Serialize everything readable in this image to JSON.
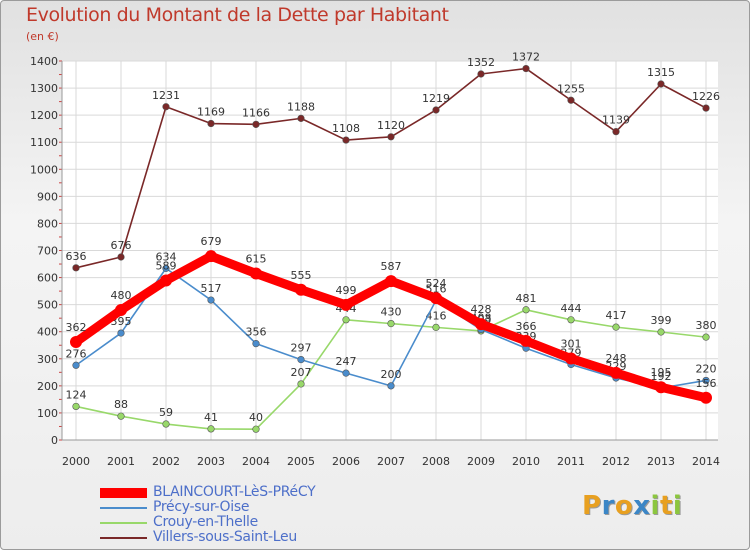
{
  "title": "Evolution du Montant de la Dette par Habitant",
  "subtitle": "(en €)",
  "logo": {
    "letters": [
      "P",
      "r",
      "o",
      "x",
      "i",
      "t",
      "i"
    ],
    "colors": [
      "#e8a020",
      "#3b86c6",
      "#e8a020",
      "#3b86c6",
      "#8cc63f",
      "#e8a020",
      "#8cc63f"
    ]
  },
  "chart_data": {
    "type": "line",
    "x": [
      2000,
      2001,
      2002,
      2003,
      2004,
      2005,
      2006,
      2007,
      2008,
      2009,
      2010,
      2011,
      2012,
      2013,
      2014
    ],
    "ylim": [
      0,
      1400
    ],
    "yticks": [
      0,
      100,
      200,
      300,
      400,
      500,
      600,
      700,
      800,
      900,
      1000,
      1100,
      1200,
      1300,
      1400
    ],
    "grid": true,
    "legend_position": "bottom-left",
    "series": [
      {
        "name": "Villers-sous-Saint-Leu",
        "color": "#7a2828",
        "values": [
          636,
          676,
          1231,
          1169,
          1166,
          1188,
          1108,
          1120,
          1219,
          1352,
          1372,
          1255,
          1139,
          1315,
          1226
        ],
        "labels": [
          "636",
          "676",
          "1231",
          "1169",
          "1166",
          "1188",
          "1108",
          "1120",
          "1219",
          "1352",
          "1372",
          "1255",
          "1139",
          "1315",
          "1226"
        ]
      },
      {
        "name": "Crouy-en-Thelle",
        "color": "#98d86a",
        "values": [
          124,
          88,
          59,
          41,
          40,
          207,
          444,
          430,
          416,
          403,
          481,
          444,
          417,
          399,
          380
        ],
        "labels": [
          "124",
          "88",
          "59",
          "41",
          "40",
          "207",
          "444",
          "430",
          "416",
          "403",
          "481",
          "444",
          "417",
          "399",
          "380"
        ]
      },
      {
        "name": "Précy-sur-Oise",
        "color": "#4a8ccc",
        "values": [
          276,
          395,
          634,
          517,
          356,
          297,
          247,
          200,
          516,
          408,
          339,
          279,
          229,
          192,
          220
        ],
        "labels": [
          "276",
          "395",
          "634",
          "517",
          "356",
          "297",
          "247",
          "200",
          "516",
          "408",
          "339",
          "279",
          "229",
          "192",
          "220"
        ]
      },
      {
        "name": "BLAINCOURT-LèS-PRéCY",
        "color": "#ff0000",
        "values": [
          362,
          480,
          589,
          679,
          615,
          555,
          499,
          587,
          524,
          428,
          366,
          301,
          248,
          195,
          156
        ],
        "labels": [
          "362",
          "480",
          "589",
          "679",
          "615",
          "555",
          "499",
          "587",
          "524",
          "428",
          "366",
          "301",
          "248",
          "195",
          "156"
        ]
      }
    ],
    "legend": [
      {
        "name": "BLAINCOURT-LèS-PRéCY",
        "color": "#ff0000"
      },
      {
        "name": "Précy-sur-Oise",
        "color": "#4a8ccc"
      },
      {
        "name": "Crouy-en-Thelle",
        "color": "#98d86a"
      },
      {
        "name": "Villers-sous-Saint-Leu",
        "color": "#7a2828"
      }
    ]
  }
}
